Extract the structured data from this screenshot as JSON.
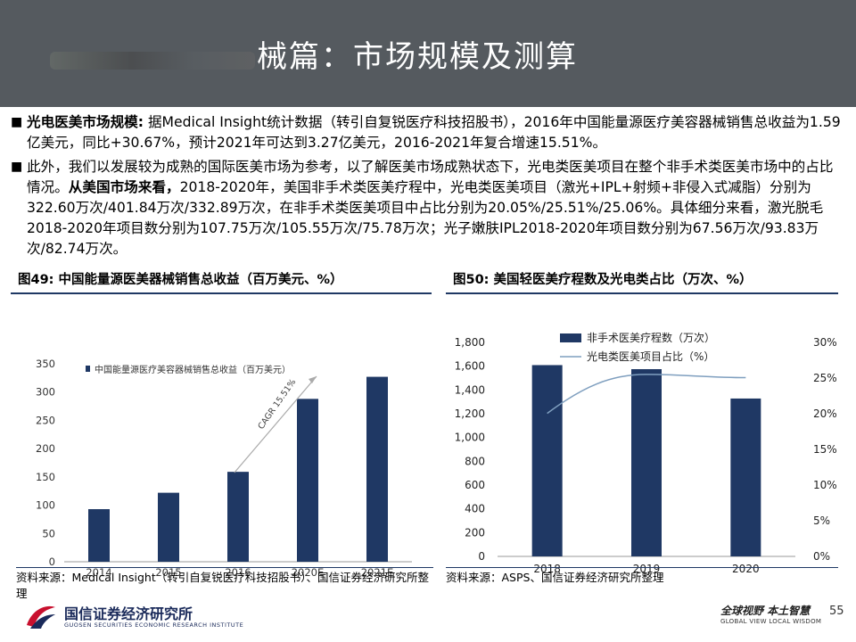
{
  "header": {
    "title": "械篇：市场规模及测算"
  },
  "bullets": [
    {
      "marker": "■",
      "lead": "光电医美市场规模:",
      "text": " 据Medical Insight统计数据（转引自复锐医疗科技招股书），2016年中国能量源医疗美容器械销售总收益为1.59亿美元，同比+30.67%，预计2021年可达到3.27亿美元，2016-2021年复合增速15.51%。"
    },
    {
      "marker": "■",
      "pre": "此外，我们以发展较为成熟的国际医美市场为参考，以了解医美市场成熟状态下，光电类医美项目在整个非手术类医美市场中的占比情况。",
      "lead": "从美国市场来看，",
      "text": "2018-2020年，美国非手术类医美疗程中，光电类医美项目（激光+IPL+射频+非侵入式减脂）分别为322.60万次/401.84万次/332.89万次，在非手术类医美项目中占比分别为20.05%/25.51%/25.06%。具体细分来看，激光脱毛2018-2020年项目数分别为107.75万次/105.55万次/75.78万次；光子嫩肤IPL2018-2020年项目数分别为67.56万次/93.83万次/82.74万次。"
    }
  ],
  "figure49": {
    "title": "图49:  中国能量源医美器械销售总收益（百万美元、%）",
    "source": "资料来源：Medical Insight（转引自复锐医疗科技招股书）、国信证券经济研究所整理"
  },
  "figure50": {
    "title": "图50:  美国轻医美疗程数及光电类占比（万次、%）",
    "source": "资料来源：ASPS、国信证券经济研究所整理"
  },
  "chart_data": [
    {
      "type": "bar",
      "title": "",
      "categories": [
        "2014",
        "2015",
        "2016",
        "2020E",
        "2021E"
      ],
      "series": [
        {
          "name": "中国能量源医疗美容器械销售总收益（百万美元）",
          "values": [
            93,
            122,
            159,
            288,
            327
          ]
        }
      ],
      "ylim": [
        0,
        350
      ],
      "yticks": [
        0,
        50,
        100,
        150,
        200,
        250,
        300,
        350
      ],
      "annotation": "CAGR 15.51%",
      "colors": {
        "bar": "#1f3864"
      },
      "legend": "top-left",
      "grid": false
    },
    {
      "type": "bar",
      "title": "",
      "categories": [
        "2018",
        "2019",
        "2020"
      ],
      "series": [
        {
          "name": "非手术医美疗程数（万次）",
          "type": "bar",
          "axis": "left",
          "values": [
            1609,
            1575,
            1328
          ]
        },
        {
          "name": "光电类医美项目占比（%）",
          "type": "line",
          "axis": "right",
          "values": [
            20.05,
            25.51,
            25.06
          ]
        }
      ],
      "ylim": [
        0,
        1800
      ],
      "yticks": [
        "0",
        "200",
        "400",
        "600",
        "800",
        "1,000",
        "1,200",
        "1,400",
        "1,600",
        "1,800"
      ],
      "y2lim": [
        0,
        30
      ],
      "y2ticks": [
        "0%",
        "5%",
        "10%",
        "15%",
        "20%",
        "25%",
        "30%"
      ],
      "colors": {
        "bar": "#1f3864",
        "line": "#7f9fbf"
      },
      "legend": "top",
      "grid": false
    }
  ],
  "footer": {
    "company": "国信证券经济研究所",
    "company_en": "GUOSEN SECURITIES ECONOMIC RESEARCH INSTITUTE",
    "slogan": "全球视野  本土智慧",
    "slogan_en": "GLOBAL VIEW    LOCAL WISDOM",
    "page": "55"
  }
}
